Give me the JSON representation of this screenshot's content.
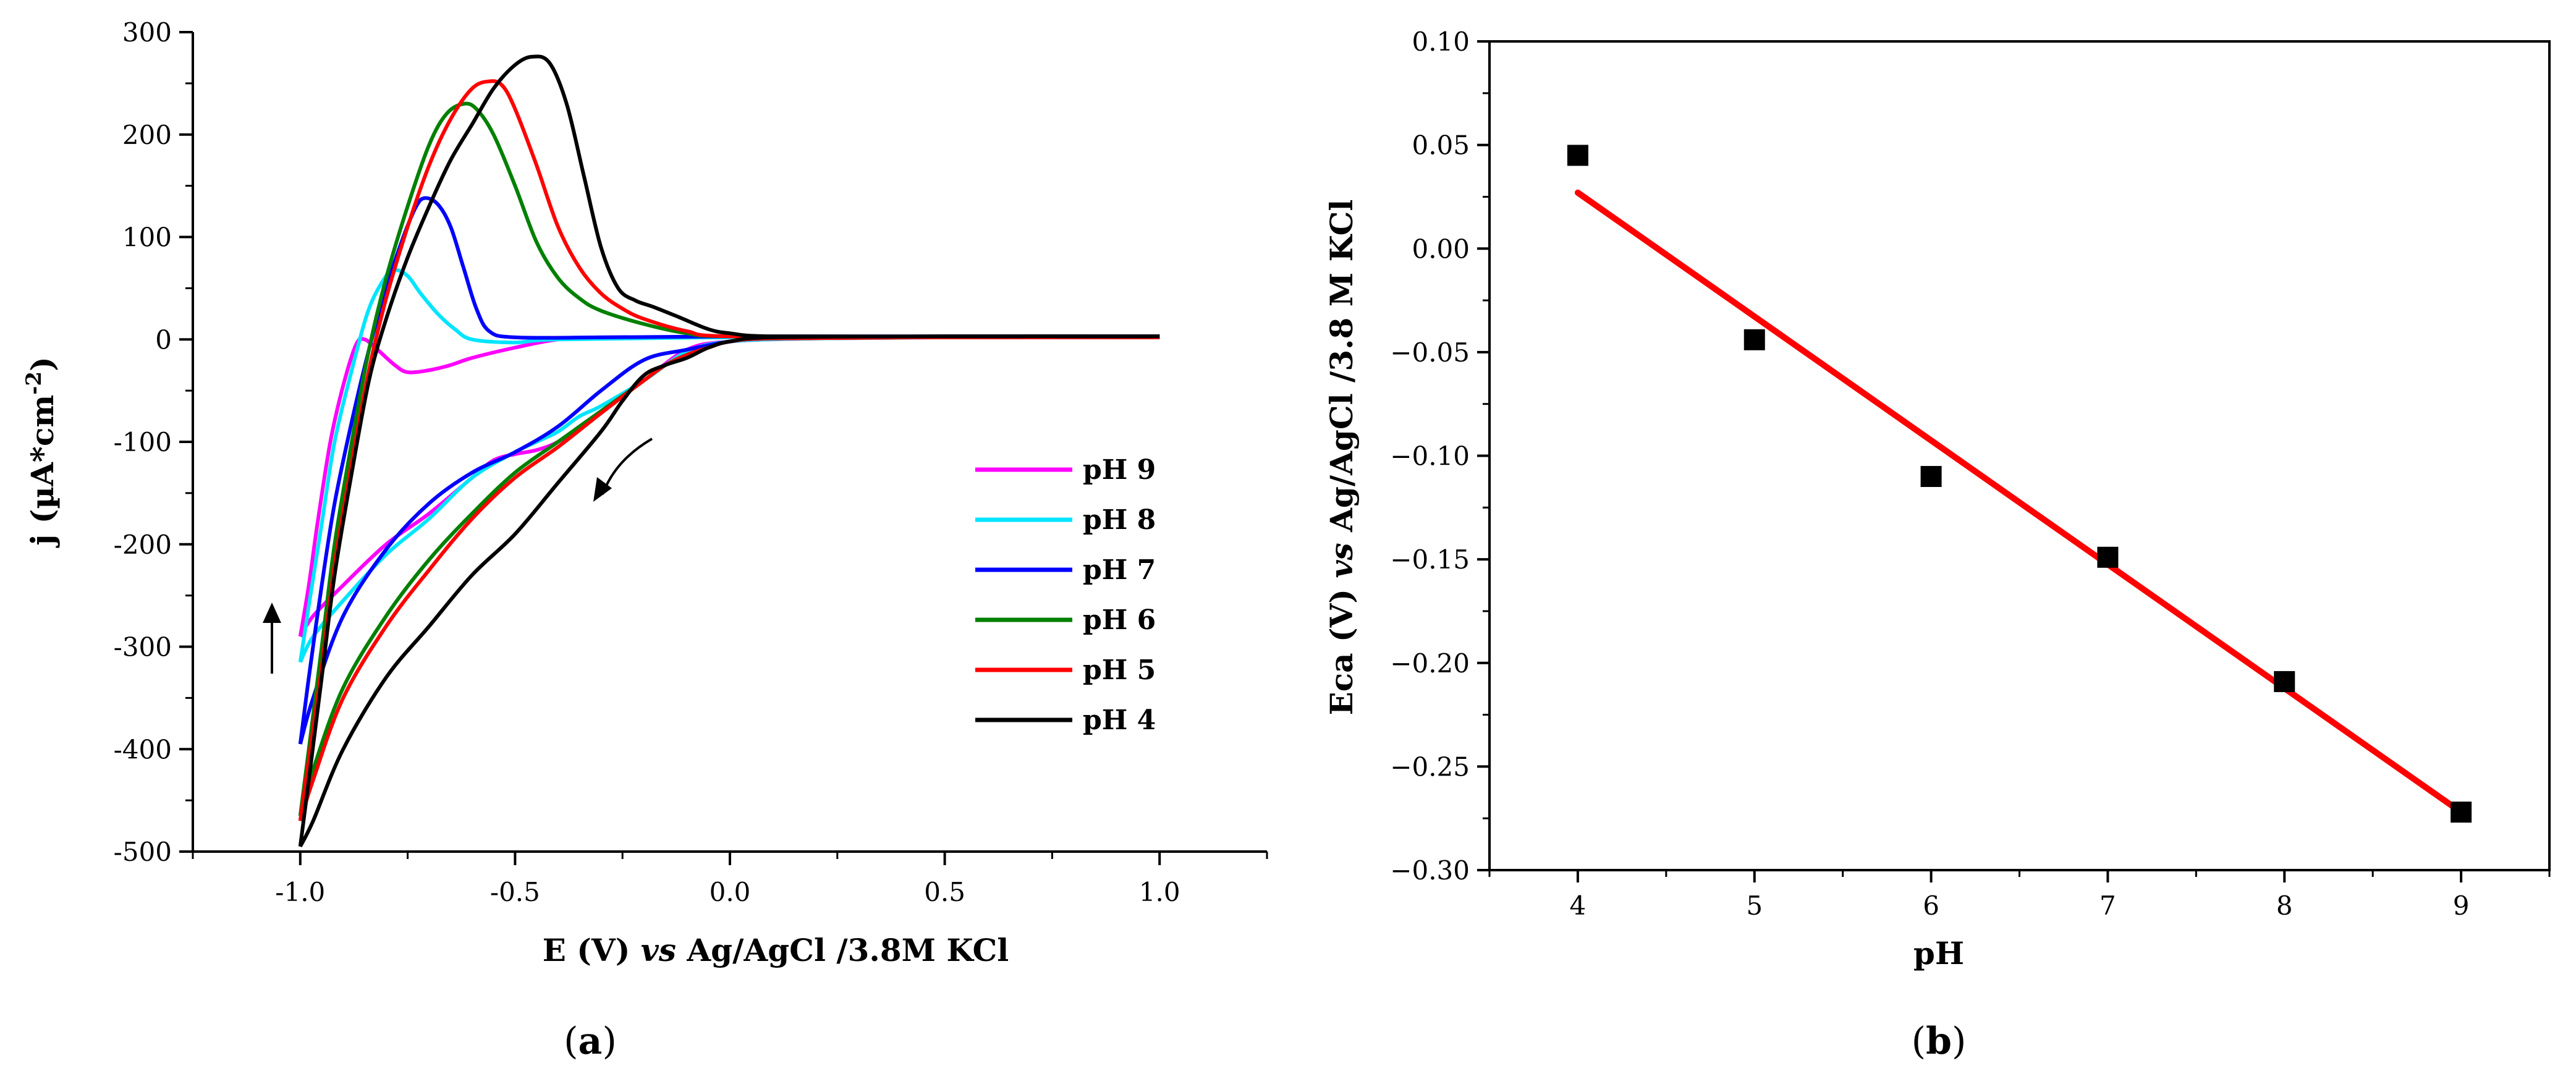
{
  "figure": {
    "panel_a_label_open": "(",
    "panel_a_label_letter": "a",
    "panel_a_label_close": ")",
    "panel_b_label_open": "(",
    "panel_b_label_letter": "b",
    "panel_b_label_close": ")"
  },
  "chart_data": [
    {
      "id": "a",
      "type": "line",
      "title": "",
      "xlabel_parts": [
        "E (V) ",
        "vs",
        " Ag/AgCl /3.8M KCl"
      ],
      "ylabel_parts": [
        "j (µA*cm",
        "-2",
        ")"
      ],
      "xlim": [
        -1.25,
        1.25
      ],
      "ylim": [
        -500,
        300
      ],
      "xticks": [
        -1.0,
        -0.5,
        0.0,
        0.5,
        1.0
      ],
      "xtick_labels": [
        "-1.0",
        "-0.5",
        "0.0",
        "0.5",
        "1.0"
      ],
      "yticks": [
        -500,
        -400,
        -300,
        -200,
        -100,
        0,
        100,
        200,
        300
      ],
      "ytick_labels": [
        "-500",
        "-400",
        "-300",
        "-200",
        "-100",
        "0",
        "100",
        "200",
        "300"
      ],
      "legend_position": "center-right",
      "annotations": [
        "scan direction arrow (cathodic sweep)",
        "arrow up at -1.0 V"
      ],
      "series": [
        {
          "name": "pH 9",
          "color": "#ff00ff",
          "forward": [
            [
              1.0,
              2
            ],
            [
              0.5,
              2
            ],
            [
              0.2,
              1
            ],
            [
              0.0,
              -2
            ],
            [
              -0.1,
              -10
            ],
            [
              -0.2,
              -40
            ],
            [
              -0.3,
              -70
            ],
            [
              -0.35,
              -85
            ],
            [
              -0.4,
              -100
            ],
            [
              -0.45,
              -108
            ],
            [
              -0.5,
              -112
            ],
            [
              -0.55,
              -118
            ],
            [
              -0.6,
              -135
            ],
            [
              -0.7,
              -170
            ],
            [
              -0.8,
              -200
            ],
            [
              -0.9,
              -240
            ],
            [
              -0.97,
              -270
            ],
            [
              -1.0,
              -290
            ]
          ],
          "reverse": [
            [
              -1.0,
              -290
            ],
            [
              -0.98,
              -240
            ],
            [
              -0.96,
              -180
            ],
            [
              -0.93,
              -100
            ],
            [
              -0.9,
              -45
            ],
            [
              -0.87,
              -5
            ],
            [
              -0.85,
              0
            ],
            [
              -0.82,
              -10
            ],
            [
              -0.78,
              -25
            ],
            [
              -0.75,
              -32
            ],
            [
              -0.7,
              -30
            ],
            [
              -0.65,
              -25
            ],
            [
              -0.6,
              -18
            ],
            [
              -0.5,
              -8
            ],
            [
              -0.4,
              0
            ],
            [
              -0.3,
              2
            ],
            [
              0.0,
              2
            ],
            [
              0.5,
              2
            ],
            [
              1.0,
              2
            ]
          ]
        },
        {
          "name": "pH 8",
          "color": "#00e5ff",
          "forward": [
            [
              1.0,
              2
            ],
            [
              0.5,
              2
            ],
            [
              0.2,
              1
            ],
            [
              0.0,
              -2
            ],
            [
              -0.1,
              -12
            ],
            [
              -0.2,
              -40
            ],
            [
              -0.3,
              -65
            ],
            [
              -0.35,
              -75
            ],
            [
              -0.4,
              -90
            ],
            [
              -0.45,
              -100
            ],
            [
              -0.5,
              -110
            ],
            [
              -0.6,
              -135
            ],
            [
              -0.7,
              -175
            ],
            [
              -0.8,
              -210
            ],
            [
              -0.9,
              -255
            ],
            [
              -0.97,
              -290
            ],
            [
              -1.0,
              -315
            ]
          ],
          "reverse": [
            [
              -1.0,
              -315
            ],
            [
              -0.98,
              -260
            ],
            [
              -0.95,
              -180
            ],
            [
              -0.92,
              -100
            ],
            [
              -0.88,
              -30
            ],
            [
              -0.84,
              30
            ],
            [
              -0.8,
              62
            ],
            [
              -0.78,
              68
            ],
            [
              -0.75,
              62
            ],
            [
              -0.72,
              45
            ],
            [
              -0.68,
              25
            ],
            [
              -0.64,
              10
            ],
            [
              -0.6,
              0
            ],
            [
              -0.5,
              -3
            ],
            [
              -0.4,
              0
            ],
            [
              0.0,
              2
            ],
            [
              0.5,
              2
            ],
            [
              1.0,
              2
            ]
          ]
        },
        {
          "name": "pH 7",
          "color": "#0000ff",
          "forward": [
            [
              1.0,
              3
            ],
            [
              0.5,
              3
            ],
            [
              0.1,
              1
            ],
            [
              0.0,
              -2
            ],
            [
              -0.1,
              -10
            ],
            [
              -0.2,
              -20
            ],
            [
              -0.3,
              -50
            ],
            [
              -0.4,
              -85
            ],
            [
              -0.5,
              -110
            ],
            [
              -0.6,
              -130
            ],
            [
              -0.7,
              -160
            ],
            [
              -0.8,
              -205
            ],
            [
              -0.9,
              -270
            ],
            [
              -0.97,
              -350
            ],
            [
              -1.0,
              -395
            ]
          ],
          "reverse": [
            [
              -1.0,
              -395
            ],
            [
              -0.98,
              -330
            ],
            [
              -0.95,
              -240
            ],
            [
              -0.92,
              -160
            ],
            [
              -0.88,
              -80
            ],
            [
              -0.84,
              -10
            ],
            [
              -0.8,
              50
            ],
            [
              -0.76,
              100
            ],
            [
              -0.73,
              130
            ],
            [
              -0.71,
              138
            ],
            [
              -0.68,
              132
            ],
            [
              -0.65,
              110
            ],
            [
              -0.62,
              70
            ],
            [
              -0.59,
              30
            ],
            [
              -0.56,
              8
            ],
            [
              -0.5,
              2
            ],
            [
              -0.3,
              2
            ],
            [
              0.0,
              3
            ],
            [
              0.5,
              3
            ],
            [
              1.0,
              3
            ]
          ]
        },
        {
          "name": "pH 6",
          "color": "#008000",
          "forward": [
            [
              1.0,
              2
            ],
            [
              0.5,
              2
            ],
            [
              0.1,
              1
            ],
            [
              0.0,
              -2
            ],
            [
              -0.05,
              -8
            ],
            [
              -0.1,
              -15
            ],
            [
              -0.15,
              -25
            ],
            [
              -0.2,
              -40
            ],
            [
              -0.3,
              -70
            ],
            [
              -0.4,
              -100
            ],
            [
              -0.5,
              -130
            ],
            [
              -0.6,
              -170
            ],
            [
              -0.7,
              -215
            ],
            [
              -0.8,
              -270
            ],
            [
              -0.9,
              -340
            ],
            [
              -0.97,
              -420
            ],
            [
              -1.0,
              -465
            ]
          ],
          "reverse": [
            [
              -1.0,
              -465
            ],
            [
              -0.98,
              -400
            ],
            [
              -0.95,
              -300
            ],
            [
              -0.92,
              -200
            ],
            [
              -0.88,
              -100
            ],
            [
              -0.84,
              -10
            ],
            [
              -0.8,
              60
            ],
            [
              -0.75,
              130
            ],
            [
              -0.7,
              190
            ],
            [
              -0.66,
              220
            ],
            [
              -0.62,
              230
            ],
            [
              -0.59,
              225
            ],
            [
              -0.55,
              200
            ],
            [
              -0.5,
              150
            ],
            [
              -0.45,
              95
            ],
            [
              -0.4,
              60
            ],
            [
              -0.35,
              40
            ],
            [
              -0.3,
              28
            ],
            [
              -0.2,
              15
            ],
            [
              -0.1,
              6
            ],
            [
              0.0,
              3
            ],
            [
              0.5,
              2
            ],
            [
              1.0,
              2
            ]
          ]
        },
        {
          "name": "pH 5",
          "color": "#ff0000",
          "forward": [
            [
              1.0,
              2
            ],
            [
              0.5,
              2
            ],
            [
              0.1,
              1
            ],
            [
              0.0,
              -2
            ],
            [
              -0.05,
              -8
            ],
            [
              -0.1,
              -15
            ],
            [
              -0.15,
              -25
            ],
            [
              -0.2,
              -40
            ],
            [
              -0.3,
              -72
            ],
            [
              -0.4,
              -105
            ],
            [
              -0.5,
              -135
            ],
            [
              -0.6,
              -175
            ],
            [
              -0.7,
              -225
            ],
            [
              -0.8,
              -280
            ],
            [
              -0.9,
              -350
            ],
            [
              -0.97,
              -430
            ],
            [
              -1.0,
              -470
            ]
          ],
          "reverse": [
            [
              -1.0,
              -470
            ],
            [
              -0.98,
              -410
            ],
            [
              -0.95,
              -320
            ],
            [
              -0.92,
              -220
            ],
            [
              -0.88,
              -120
            ],
            [
              -0.84,
              -30
            ],
            [
              -0.8,
              40
            ],
            [
              -0.75,
              110
            ],
            [
              -0.7,
              170
            ],
            [
              -0.65,
              215
            ],
            [
              -0.6,
              245
            ],
            [
              -0.56,
              252
            ],
            [
              -0.53,
              248
            ],
            [
              -0.5,
              225
            ],
            [
              -0.45,
              170
            ],
            [
              -0.4,
              110
            ],
            [
              -0.35,
              70
            ],
            [
              -0.3,
              45
            ],
            [
              -0.25,
              30
            ],
            [
              -0.2,
              20
            ],
            [
              -0.1,
              8
            ],
            [
              0.0,
              3
            ],
            [
              0.5,
              2
            ],
            [
              1.0,
              2
            ]
          ]
        },
        {
          "name": "pH 4",
          "color": "#000000",
          "forward": [
            [
              1.0,
              3
            ],
            [
              0.5,
              3
            ],
            [
              0.1,
              2
            ],
            [
              0.0,
              -2
            ],
            [
              -0.05,
              -8
            ],
            [
              -0.1,
              -18
            ],
            [
              -0.15,
              -25
            ],
            [
              -0.2,
              -35
            ],
            [
              -0.25,
              -60
            ],
            [
              -0.3,
              -90
            ],
            [
              -0.4,
              -140
            ],
            [
              -0.5,
              -190
            ],
            [
              -0.6,
              -230
            ],
            [
              -0.7,
              -280
            ],
            [
              -0.8,
              -330
            ],
            [
              -0.9,
              -400
            ],
            [
              -0.97,
              -470
            ],
            [
              -1.0,
              -495
            ]
          ],
          "reverse": [
            [
              -1.0,
              -495
            ],
            [
              -0.98,
              -430
            ],
            [
              -0.95,
              -330
            ],
            [
              -0.92,
              -230
            ],
            [
              -0.88,
              -130
            ],
            [
              -0.84,
              -40
            ],
            [
              -0.8,
              20
            ],
            [
              -0.75,
              80
            ],
            [
              -0.7,
              130
            ],
            [
              -0.65,
              175
            ],
            [
              -0.6,
              210
            ],
            [
              -0.55,
              245
            ],
            [
              -0.5,
              268
            ],
            [
              -0.46,
              276
            ],
            [
              -0.42,
              270
            ],
            [
              -0.38,
              230
            ],
            [
              -0.34,
              160
            ],
            [
              -0.3,
              90
            ],
            [
              -0.26,
              50
            ],
            [
              -0.22,
              38
            ],
            [
              -0.18,
              32
            ],
            [
              -0.12,
              22
            ],
            [
              -0.05,
              10
            ],
            [
              0.0,
              6
            ],
            [
              0.1,
              3
            ],
            [
              0.5,
              3
            ],
            [
              1.0,
              3
            ]
          ]
        }
      ]
    },
    {
      "id": "b",
      "type": "scatter",
      "title": "",
      "xlabel": "pH",
      "ylabel_parts": [
        "Eca (V) ",
        "vs",
        " Ag/AgCl /3.8 M KCl"
      ],
      "xlim": [
        3.5,
        9.5
      ],
      "ylim": [
        -0.3,
        0.1
      ],
      "xticks": [
        4,
        5,
        6,
        7,
        8,
        9
      ],
      "xtick_labels": [
        "4",
        "5",
        "6",
        "7",
        "8",
        "9"
      ],
      "yticks": [
        0.1,
        0.05,
        0.0,
        -0.05,
        -0.1,
        -0.15,
        -0.2,
        -0.25,
        -0.3
      ],
      "ytick_labels": [
        "0.10",
        "0.05",
        "0.00",
        "−0.05",
        "−0.10",
        "−0.15",
        "−0.20",
        "−0.25",
        "−0.30"
      ],
      "points": {
        "x": [
          4,
          5,
          6,
          7,
          8,
          9
        ],
        "y": [
          0.045,
          -0.044,
          -0.11,
          -0.149,
          -0.209,
          -0.272
        ]
      },
      "marker_color": "#000000",
      "fit": {
        "x": [
          4,
          9
        ],
        "y": [
          0.027,
          -0.272
        ],
        "color": "#ff0000"
      }
    }
  ]
}
